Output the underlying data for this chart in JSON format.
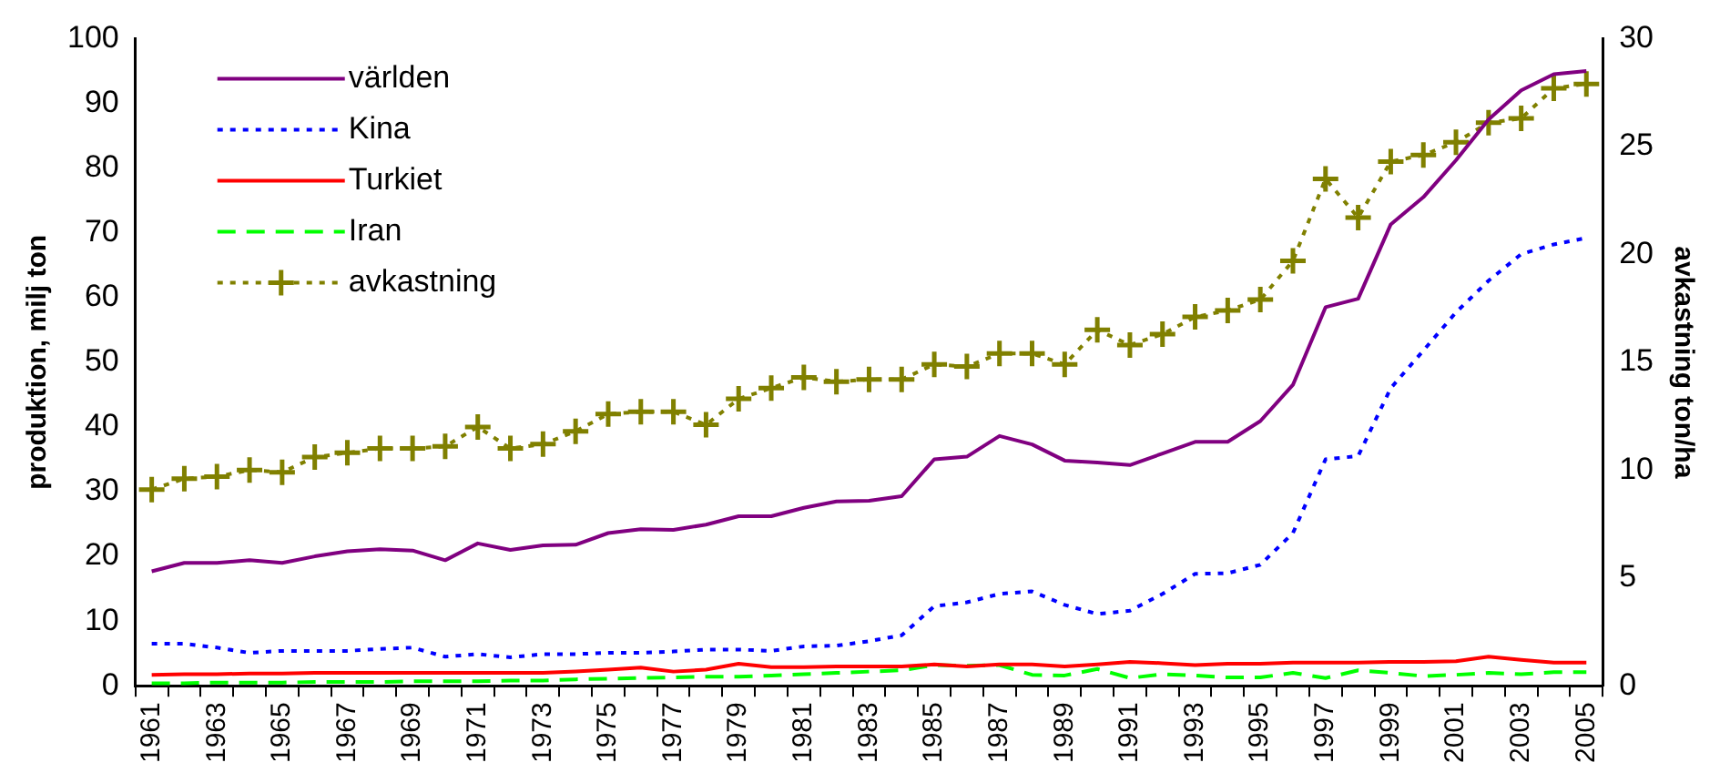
{
  "chart_data": {
    "type": "line",
    "ylabel": "produktion, milj ton",
    "y2label": "avkastning ton/ha",
    "categories": [
      "1961",
      null,
      "1963",
      null,
      "1965",
      null,
      "1967",
      null,
      "1969",
      null,
      "1971",
      null,
      "1973",
      null,
      "1975",
      null,
      "1977",
      null,
      "1979",
      null,
      "1981",
      null,
      "1983",
      null,
      "1985",
      null,
      "1987",
      null,
      "1989",
      null,
      "1991",
      null,
      "1993",
      null,
      "1995",
      null,
      "1997",
      null,
      "1999",
      null,
      "2001",
      null,
      "2003",
      null,
      "2005"
    ],
    "ylim": [
      0,
      100
    ],
    "yticks": [
      0,
      10,
      20,
      30,
      40,
      50,
      60,
      70,
      80,
      90,
      100
    ],
    "y2lim": [
      0,
      30
    ],
    "y2ticks": [
      0,
      5,
      10,
      15,
      20,
      25,
      30
    ],
    "grid": false,
    "legend": "top left",
    "marker": "none",
    "series": [
      {
        "name": "världen",
        "color": "#800080",
        "line_style": "solid",
        "values": [
          17.7,
          19,
          19,
          19.4,
          19,
          20,
          20.8,
          21.1,
          20.9,
          19.4,
          22,
          21,
          21.7,
          21.8,
          23.6,
          24.2,
          24.1,
          24.9,
          26.2,
          26.2,
          27.5,
          28.5,
          28.6,
          29.3,
          35,
          35.4,
          38.6,
          37.3,
          34.8,
          34.5,
          34.1,
          35.9,
          37.7,
          37.7,
          40.9,
          46.5,
          58.5,
          59.8,
          71.3,
          75.5,
          81.2,
          87.5,
          92,
          94.5,
          95
        ]
      },
      {
        "name": "Kina",
        "color": "#0000ff",
        "line_style": "dotted",
        "values": [
          6.5,
          6.5,
          5.9,
          5.1,
          5.4,
          5.4,
          5.4,
          5.7,
          5.9,
          4.5,
          4.9,
          4.4,
          4.9,
          4.9,
          5.1,
          5.1,
          5.3,
          5.6,
          5.6,
          5.4,
          6.1,
          6.2,
          6.9,
          7.8,
          12.3,
          12.9,
          14.2,
          14.6,
          12.5,
          11.1,
          11.6,
          14.2,
          17.3,
          17.4,
          18.7,
          23.6,
          35,
          35.5,
          46,
          51.8,
          57.7,
          62.6,
          66.7,
          68.2,
          69.2
        ]
      },
      {
        "name": "Turkiet",
        "color": "#ff0000",
        "line_style": "solid",
        "values": [
          1.7,
          1.8,
          1.8,
          1.9,
          1.9,
          2,
          2,
          2,
          2,
          2,
          2,
          2,
          2,
          2.2,
          2.5,
          2.8,
          2.2,
          2.5,
          3.4,
          2.9,
          2.9,
          3,
          3,
          3,
          3.3,
          3,
          3.3,
          3.3,
          3,
          3.3,
          3.7,
          3.5,
          3.2,
          3.4,
          3.4,
          3.6,
          3.6,
          3.6,
          3.7,
          3.7,
          3.8,
          4.5,
          4,
          3.6,
          3.6
        ]
      },
      {
        "name": "Iran",
        "color": "#00ff00",
        "line_style": "dashed",
        "values": [
          0.4,
          0.4,
          0.5,
          0.5,
          0.5,
          0.6,
          0.6,
          0.6,
          0.7,
          0.7,
          0.7,
          0.8,
          0.8,
          1,
          1.1,
          1.2,
          1.3,
          1.4,
          1.4,
          1.6,
          1.8,
          2,
          2.2,
          2.4,
          3.2,
          3.1,
          3.2,
          1.7,
          1.6,
          2.6,
          1.2,
          1.8,
          1.6,
          1.3,
          1.3,
          2,
          1.2,
          2.4,
          2,
          1.5,
          1.7,
          2,
          1.8,
          2.1,
          2.1
        ]
      },
      {
        "name": "avkastning",
        "color": "#808000",
        "line_style": "dotted",
        "marker": "cross",
        "axis": "y2",
        "values": [
          9.1,
          9.6,
          9.7,
          10,
          9.9,
          10.6,
          10.8,
          11,
          11,
          11.1,
          12,
          11,
          11.2,
          11.8,
          12.6,
          12.7,
          12.7,
          12.1,
          13.3,
          13.8,
          14.3,
          14.1,
          14.2,
          14.2,
          14.9,
          14.8,
          15.4,
          15.4,
          14.9,
          16.5,
          15.8,
          16.3,
          17.1,
          17.4,
          17.9,
          19.7,
          23.5,
          21.7,
          24.3,
          24.6,
          25.2,
          26.1,
          26.3,
          27.7,
          27.9
        ]
      }
    ]
  }
}
